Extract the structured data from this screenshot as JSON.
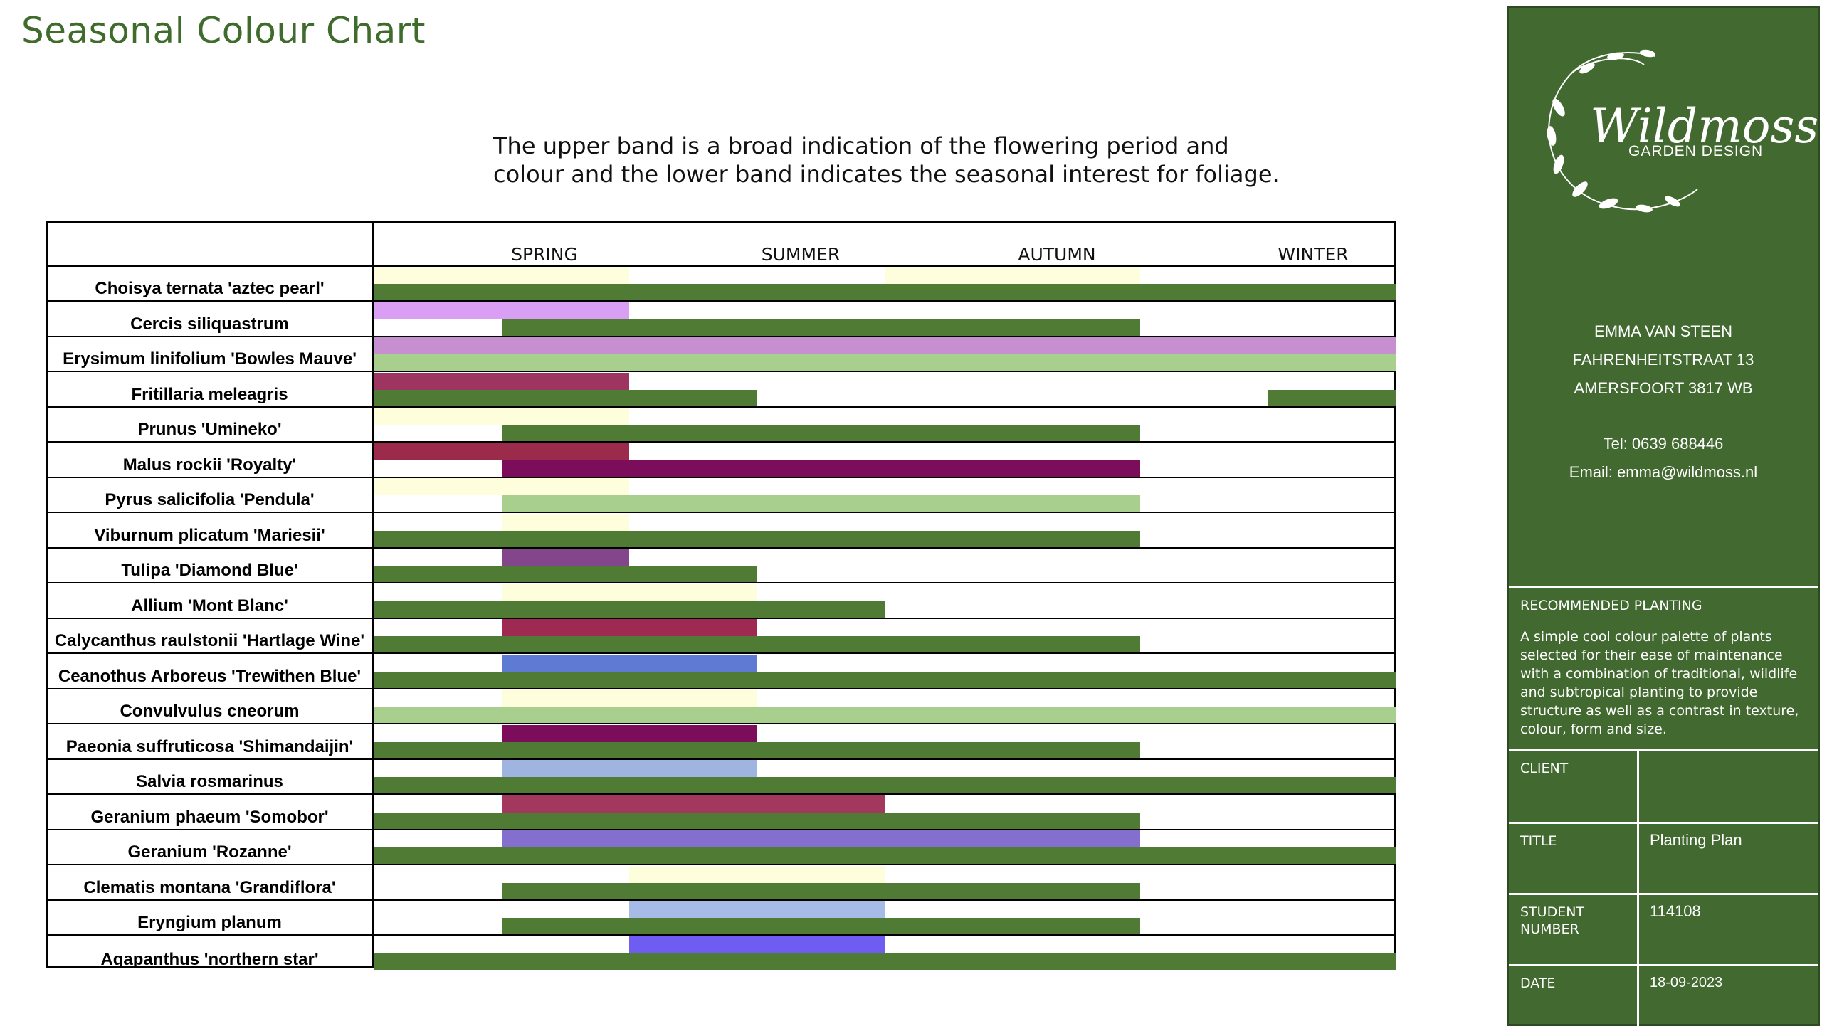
{
  "page": {
    "title": "Seasonal Colour Chart",
    "intro_line1": "The upper band is a broad indication of the flowering period and",
    "intro_line2": "colour and the lower band indicates the seasonal interest for foliage."
  },
  "chart_data": {
    "type": "table",
    "seasons": [
      "SPRING",
      "SUMMER",
      "AUTUMN",
      "WINTER"
    ],
    "band_units": "eighths of the year starting at spring (0-8)",
    "rows": [
      {
        "name": "Choisya ternata 'aztec pearl'",
        "upper": [
          {
            "start": 0,
            "end": 2,
            "color": "#fefddc"
          },
          {
            "start": 4,
            "end": 6,
            "color": "#fefddc"
          }
        ],
        "lower": [
          {
            "start": 0,
            "end": 8,
            "color": "#4f7b35"
          }
        ]
      },
      {
        "name": "Cercis siliquastrum",
        "upper": [
          {
            "start": 0,
            "end": 2,
            "color": "#d99ff5"
          }
        ],
        "lower": [
          {
            "start": 1,
            "end": 6,
            "color": "#4f7b35"
          }
        ]
      },
      {
        "name": "Erysimum linifolium 'Bowles Mauve'",
        "upper": [
          {
            "start": 0,
            "end": 8,
            "color": "#c58fd0"
          }
        ],
        "lower": [
          {
            "start": 0,
            "end": 8,
            "color": "#a8cf8e"
          }
        ]
      },
      {
        "name": "Fritillaria meleagris",
        "upper": [
          {
            "start": 0,
            "end": 2,
            "color": "#9e3560"
          }
        ],
        "lower": [
          {
            "start": 0,
            "end": 3,
            "color": "#4f7b35"
          },
          {
            "start": 7,
            "end": 8,
            "color": "#4f7b35"
          }
        ]
      },
      {
        "name": "Prunus 'Umineko'",
        "upper": [
          {
            "start": 0,
            "end": 2,
            "color": "#fefddc"
          }
        ],
        "lower": [
          {
            "start": 1,
            "end": 6,
            "color": "#4f7b35"
          }
        ]
      },
      {
        "name": "Malus rockii 'Royalty'",
        "upper": [
          {
            "start": 0,
            "end": 2,
            "color": "#9b2a4b"
          }
        ],
        "lower": [
          {
            "start": 1,
            "end": 6,
            "color": "#7b0d5b"
          }
        ]
      },
      {
        "name": "Pyrus salicifolia 'Pendula'",
        "upper": [
          {
            "start": 0,
            "end": 2,
            "color": "#fefddc"
          }
        ],
        "lower": [
          {
            "start": 1,
            "end": 6,
            "color": "#a8cf8e"
          }
        ]
      },
      {
        "name": "Viburnum plicatum 'Mariesii'",
        "upper": [
          {
            "start": 1,
            "end": 2,
            "color": "#fefddc"
          }
        ],
        "lower": [
          {
            "start": 0,
            "end": 6,
            "color": "#4f7b35"
          }
        ]
      },
      {
        "name": "Tulipa 'Diamond Blue'",
        "upper": [
          {
            "start": 1,
            "end": 2,
            "color": "#84468a"
          }
        ],
        "lower": [
          {
            "start": 0,
            "end": 3,
            "color": "#4f7b35"
          }
        ]
      },
      {
        "name": "Allium 'Mont Blanc'",
        "upper": [
          {
            "start": 1,
            "end": 3,
            "color": "#fefddc"
          }
        ],
        "lower": [
          {
            "start": 0,
            "end": 4,
            "color": "#4f7b35"
          }
        ]
      },
      {
        "name": "Calycanthus raulstonii 'Hartlage Wine'",
        "upper": [
          {
            "start": 1,
            "end": 3,
            "color": "#9e2a52"
          }
        ],
        "lower": [
          {
            "start": 0,
            "end": 6,
            "color": "#4f7b35"
          }
        ]
      },
      {
        "name": "Ceanothus Arboreus 'Trewithen Blue'",
        "upper": [
          {
            "start": 1,
            "end": 3,
            "color": "#5f7ad2"
          }
        ],
        "lower": [
          {
            "start": 0,
            "end": 8,
            "color": "#4f7b35"
          }
        ]
      },
      {
        "name": "Convulvulus cneorum",
        "upper": [
          {
            "start": 1,
            "end": 3,
            "color": "#fefddc"
          }
        ],
        "lower": [
          {
            "start": 0,
            "end": 8,
            "color": "#a8cf8e"
          }
        ]
      },
      {
        "name": "Paeonia suffruticosa  'Shimandaijin'",
        "upper": [
          {
            "start": 1,
            "end": 3,
            "color": "#7b0d5b"
          }
        ],
        "lower": [
          {
            "start": 0,
            "end": 6,
            "color": "#4f7b35"
          }
        ]
      },
      {
        "name": "Salvia rosmarinus",
        "upper": [
          {
            "start": 1,
            "end": 3,
            "color": "#9fb4e0"
          }
        ],
        "lower": [
          {
            "start": 0,
            "end": 8,
            "color": "#4f7b35"
          }
        ]
      },
      {
        "name": "Geranium phaeum 'Somobor'",
        "upper": [
          {
            "start": 1,
            "end": 4,
            "color": "#a3385e"
          }
        ],
        "lower": [
          {
            "start": 0,
            "end": 6,
            "color": "#4f7b35"
          }
        ]
      },
      {
        "name": "Geranium 'Rozanne'",
        "upper": [
          {
            "start": 1,
            "end": 6,
            "color": "#846fce"
          }
        ],
        "lower": [
          {
            "start": 0,
            "end": 8,
            "color": "#4f7b35"
          }
        ]
      },
      {
        "name": "Clematis montana 'Grandiflora'",
        "upper": [
          {
            "start": 2,
            "end": 4,
            "color": "#fefddc"
          }
        ],
        "lower": [
          {
            "start": 1,
            "end": 6,
            "color": "#4f7b35"
          }
        ]
      },
      {
        "name": "Eryngium planum",
        "upper": [
          {
            "start": 2,
            "end": 4,
            "color": "#a6bce6"
          }
        ],
        "lower": [
          {
            "start": 1,
            "end": 6,
            "color": "#4f7b35"
          }
        ]
      },
      {
        "name": "Agapanthus 'northern star'",
        "upper": [
          {
            "start": 2,
            "end": 4,
            "color": "#6f5cf0"
          }
        ],
        "lower": [
          {
            "start": 0,
            "end": 8,
            "color": "#4f7b35"
          }
        ]
      }
    ]
  },
  "panel": {
    "logo_word": "Wildmoss",
    "logo_sub": "GARDEN DESIGN",
    "name": "EMMA VAN STEEN",
    "street": "FAHRENHEITSTRAAT 13",
    "city": "AMERSFOORT 3817 WB",
    "tel": "Tel:  0639 688446",
    "email": "Email:  emma@wildmoss.nl",
    "recommended_title": "RECOMMENDED PLANTING",
    "recommended_body": "A simple cool colour palette of plants selected for their ease of maintenance with a combination of traditional, wildlife and subtropical planting to provide structure as well as a contrast in texture, colour, form and size.",
    "client_label": "CLIENT",
    "client_value": "",
    "title_label": "TITLE",
    "title_value": "Planting Plan",
    "student_label": "STUDENT NUMBER",
    "student_value": "114108",
    "date_label": "DATE",
    "date_value": "18-09-2023",
    "panel_bg": "#426930"
  }
}
